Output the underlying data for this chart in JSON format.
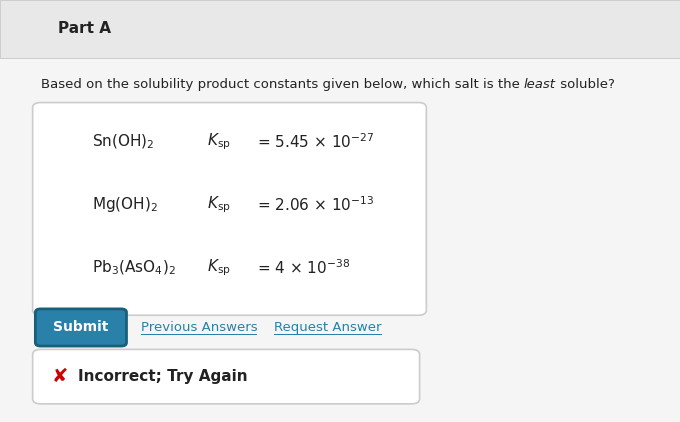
{
  "title": "Part A",
  "question_part1": "Based on the solubility product constants given below, which salt is the ",
  "question_italic": "least",
  "question_part2": " soluble?",
  "options": [
    {
      "formula": "Sn(OH)$_2$",
      "ksp_value": "= 5.45 × 10$^{-27}$",
      "selected": false
    },
    {
      "formula": "Mg(OH)$_2$",
      "ksp_value": "= 2.06 × 10$^{-13}$",
      "selected": false
    },
    {
      "formula": "Pb$_3$(AsO$_4$)$_2$",
      "ksp_value": "= 4 × 10$^{-38}$",
      "selected": true
    }
  ],
  "submit_text": "Submit",
  "submit_bg": "#2980a8",
  "submit_fg": "#ffffff",
  "submit_border": "#1a5f7a",
  "link_color": "#2980a8",
  "prev_answers_text": "Previous Answers",
  "request_answer_text": "Request Answer",
  "incorrect_text": "Incorrect; Try Again",
  "bg_color": "#f5f5f5",
  "white": "#ffffff",
  "border_color": "#cccccc",
  "header_bg": "#e8e8e8",
  "text_color": "#222222",
  "selected_circle_color": "#2980a8",
  "unselected_circle_color": "#aaaaaa",
  "x_mark_color": "#cc0000"
}
